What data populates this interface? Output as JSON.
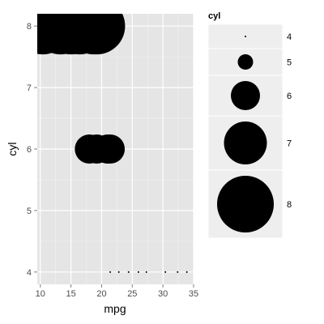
{
  "chart_data": {
    "type": "scatter",
    "xlabel": "mpg",
    "ylabel": "cyl",
    "xlim": [
      9.5,
      35
    ],
    "ylim": [
      3.8,
      8.2
    ],
    "x_ticks": [
      10,
      15,
      20,
      25,
      30,
      35
    ],
    "x_tick_labels": [
      "10",
      "15",
      "20",
      "25",
      "30",
      "35"
    ],
    "y_ticks": [
      4,
      5,
      6,
      7,
      8
    ],
    "y_tick_labels": [
      "4",
      "5",
      "6",
      "7",
      "8"
    ],
    "grid": true,
    "size_mapped_to": "cyl",
    "points": [
      {
        "x": 21.4,
        "y": 4
      },
      {
        "x": 22.8,
        "y": 4
      },
      {
        "x": 24.4,
        "y": 4
      },
      {
        "x": 26.0,
        "y": 4
      },
      {
        "x": 27.3,
        "y": 4
      },
      {
        "x": 30.4,
        "y": 4
      },
      {
        "x": 32.4,
        "y": 4
      },
      {
        "x": 33.9,
        "y": 4
      },
      {
        "x": 18.0,
        "y": 6
      },
      {
        "x": 19.2,
        "y": 6
      },
      {
        "x": 21.0,
        "y": 6
      },
      {
        "x": 21.4,
        "y": 6
      },
      {
        "x": 10.4,
        "y": 8
      },
      {
        "x": 13.3,
        "y": 8
      },
      {
        "x": 15.0,
        "y": 8
      },
      {
        "x": 16.4,
        "y": 8
      },
      {
        "x": 18.7,
        "y": 8
      },
      {
        "x": 19.2,
        "y": 8
      }
    ],
    "legend": {
      "title": "cyl",
      "placement": "right",
      "entries": [
        {
          "label": "4",
          "value": 4
        },
        {
          "label": "5",
          "value": 5
        },
        {
          "label": "6",
          "value": 6
        },
        {
          "label": "7",
          "value": 7
        },
        {
          "label": "8",
          "value": 8
        }
      ]
    },
    "colors": {
      "panel_background": "#e5e5e5",
      "grid_major": "#ffffff",
      "grid_minor": "#f2f2f2",
      "point_fill": "#000000",
      "legend_key_background": "#eeeeee"
    }
  }
}
